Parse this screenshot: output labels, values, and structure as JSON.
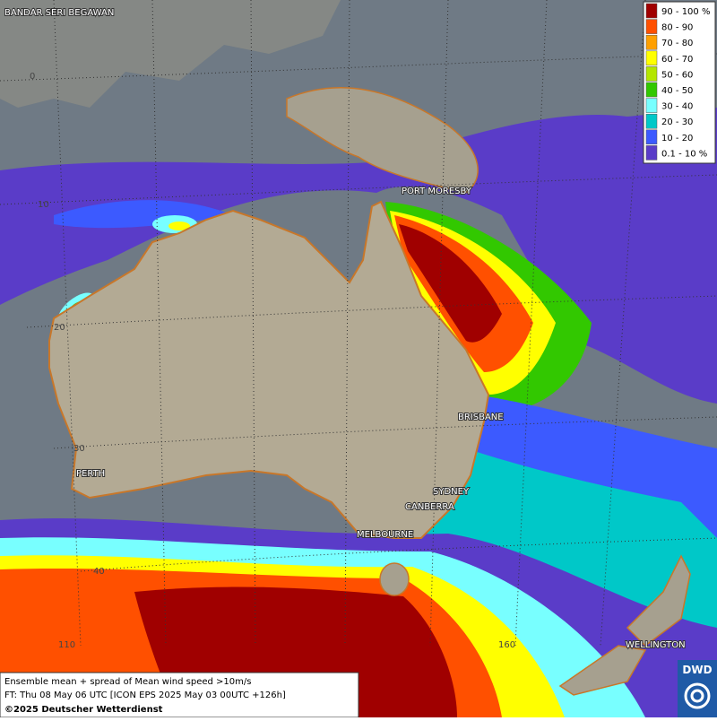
{
  "places": [
    "BANDAR SERI BEGAWAN",
    "PORT MORESBY",
    "BRISBANE",
    "SYDNEY",
    "CANBERRA",
    "MELBOURNE",
    "PERTH",
    "WELLINGTON"
  ],
  "latitude_labels": [
    "0",
    "10",
    "20",
    "30",
    "40"
  ],
  "longitude_labels": [
    "110",
    "160"
  ],
  "legend": [
    {
      "label": "90 - 100 %",
      "color": "#a00000"
    },
    {
      "label": "80 - 90",
      "color": "#ff5000"
    },
    {
      "label": "70 - 80",
      "color": "#ffa000"
    },
    {
      "label": "60 - 70",
      "color": "#ffff00"
    },
    {
      "label": "50 - 60",
      "color": "#b4e600"
    },
    {
      "label": "40 - 50",
      "color": "#32c800"
    },
    {
      "label": "30 - 40",
      "color": "#78ffff"
    },
    {
      "label": "20 - 30",
      "color": "#00c8c8"
    },
    {
      "label": "10 - 20",
      "color": "#3c5aff"
    },
    {
      "label": "0.1 - 10 %",
      "color": "#5a3cc8"
    }
  ],
  "caption": [
    "Ensemble mean + spread of Mean wind speed >10m/s",
    "FT: Thu 08 May 06 UTC [ICON EPS 2025 May 03 00UTC +126h]",
    "©2025 Deutscher Wetterdienst"
  ],
  "logo": "DWD"
}
